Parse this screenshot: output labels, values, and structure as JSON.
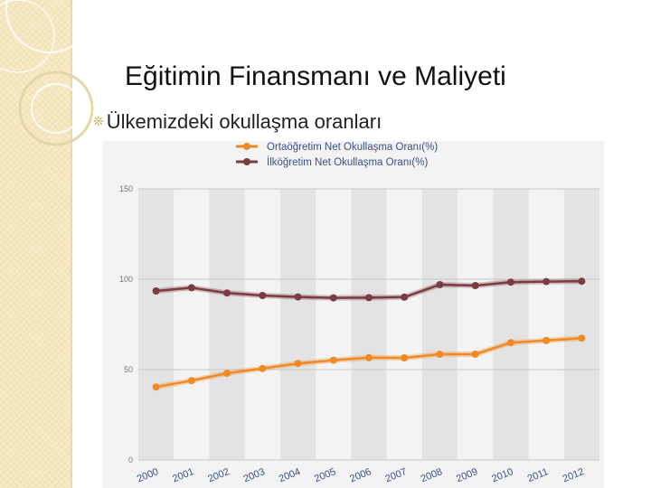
{
  "slide": {
    "title": "Eğitimin Finansmanı ve Maliyeti",
    "bullet": "Ülkemizdeki okullaşma oranları"
  },
  "colors": {
    "secondary": "#f08a24",
    "primary": "#7a3b42",
    "grid": "#c9c9c9",
    "band": "#e3e3e3",
    "side_band": "#f7ebc7"
  },
  "chart_data": {
    "type": "line",
    "title": "",
    "xlabel": "",
    "ylabel": "",
    "ylim": [
      0,
      150
    ],
    "yticks": [
      "0",
      "50",
      "100",
      "150"
    ],
    "grid": true,
    "legend_position": "top",
    "categories": [
      "2000",
      "2001",
      "2002",
      "2003",
      "2004",
      "2005",
      "2006",
      "2007",
      "2008",
      "2009",
      "2010",
      "2011",
      "2012"
    ],
    "series": [
      {
        "name": "Ortaöğretim Net Okullaşma Oranı(%)",
        "color": "#f08a24",
        "values": [
          40.4,
          43.9,
          48.0,
          50.6,
          53.4,
          55.2,
          56.6,
          56.5,
          58.5,
          58.5,
          64.9,
          66.1,
          67.4
        ]
      },
      {
        "name": "İlköğretim Net Okullaşma Oranı(%)",
        "color": "#7a3b42",
        "values": [
          93.5,
          95.3,
          92.4,
          91.0,
          90.2,
          89.7,
          89.8,
          90.1,
          97.0,
          96.5,
          98.4,
          98.7,
          98.9
        ]
      }
    ]
  }
}
